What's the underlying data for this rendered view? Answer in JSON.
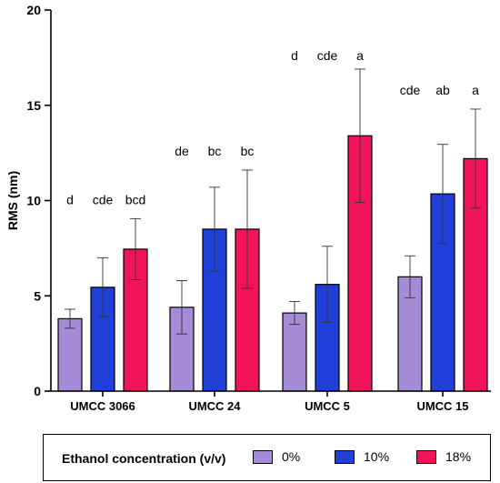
{
  "chart_data": {
    "type": "bar",
    "ylabel": "RMS (nm)",
    "ylim": [
      0,
      20
    ],
    "yticks": [
      0,
      5,
      10,
      15,
      20
    ],
    "grid": false,
    "categories": [
      "UMCC 3066",
      "UMCC 24",
      "UMCC 5",
      "UMCC 15"
    ],
    "series": [
      {
        "name": "0%",
        "color": "#a68bd6",
        "values": [
          3.8,
          4.4,
          4.1,
          6.0
        ],
        "errors": [
          0.5,
          1.4,
          0.6,
          1.1
        ],
        "letters": [
          "d",
          "de",
          "d",
          "cde"
        ]
      },
      {
        "name": "10%",
        "color": "#1f3fd8",
        "values": [
          5.45,
          8.5,
          5.6,
          10.35
        ],
        "errors": [
          1.55,
          2.2,
          2.0,
          2.6
        ],
        "letters": [
          "cde",
          "bc",
          "cde",
          "ab"
        ]
      },
      {
        "name": "18%",
        "color": "#f2145a",
        "values": [
          7.45,
          8.5,
          13.4,
          12.2
        ],
        "errors": [
          1.6,
          3.1,
          3.5,
          2.6
        ],
        "letters": [
          "bcd",
          "bc",
          "a",
          "a"
        ]
      }
    ]
  },
  "legend": {
    "title": "Ethanol concentration (v/v)",
    "placement": "bottom",
    "items": [
      {
        "label": "0%",
        "color": "#a68bd6"
      },
      {
        "label": "10%",
        "color": "#1f3fd8"
      },
      {
        "label": "18%",
        "color": "#f2145a"
      }
    ]
  }
}
